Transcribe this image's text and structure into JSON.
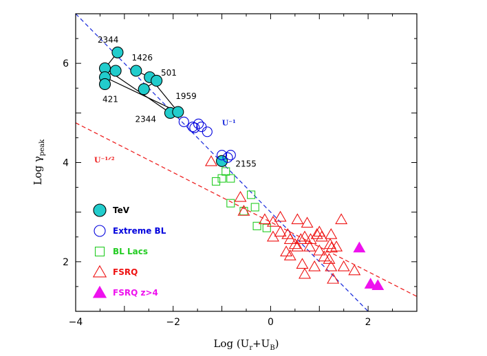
{
  "chart_data": {
    "type": "scatter",
    "title": "",
    "xlabel": "Log (U_r+U_B)",
    "ylabel": "Log γ_peak",
    "xlim": [
      -4,
      3
    ],
    "ylim": [
      1,
      7
    ],
    "xticks": [
      -4,
      -2,
      0,
      2
    ],
    "yticks": [
      2,
      4,
      6
    ],
    "grid": false,
    "legend_position": "lower-left",
    "series": [
      {
        "name": "TeV",
        "color": "#22cccc",
        "marker": "filled-circle",
        "points": [
          [
            -3.14,
            6.22
          ],
          [
            -3.4,
            5.9
          ],
          [
            -3.4,
            5.72
          ],
          [
            -3.4,
            5.58
          ],
          [
            -3.18,
            5.85
          ],
          [
            -2.76,
            5.85
          ],
          [
            -2.48,
            5.72
          ],
          [
            -2.34,
            5.65
          ],
          [
            -2.6,
            5.48
          ],
          [
            -2.06,
            5.0
          ],
          [
            -1.9,
            5.02
          ],
          [
            -1.0,
            4.03
          ]
        ]
      },
      {
        "name": "Extreme BL",
        "color": "#0000dd",
        "marker": "open-circle",
        "points": [
          [
            -1.78,
            4.82
          ],
          [
            -1.6,
            4.72
          ],
          [
            -1.56,
            4.7
          ],
          [
            -1.48,
            4.78
          ],
          [
            -1.42,
            4.72
          ],
          [
            -1.3,
            4.62
          ],
          [
            -1.0,
            4.15
          ],
          [
            -0.88,
            4.1
          ],
          [
            -0.82,
            4.15
          ]
        ]
      },
      {
        "name": "BL Lacs",
        "color": "#22cc22",
        "marker": "open-square",
        "points": [
          [
            -1.12,
            3.62
          ],
          [
            -1.0,
            3.68
          ],
          [
            -0.92,
            3.82
          ],
          [
            -0.82,
            3.68
          ],
          [
            -0.82,
            3.18
          ],
          [
            -0.55,
            3.02
          ],
          [
            -0.4,
            3.35
          ],
          [
            -0.32,
            3.1
          ],
          [
            -0.28,
            2.72
          ],
          [
            -0.08,
            2.68
          ]
        ]
      },
      {
        "name": "FSRQ",
        "color": "#ee1111",
        "marker": "open-triangle",
        "points": [
          [
            -1.22,
            4.02
          ],
          [
            -0.62,
            3.3
          ],
          [
            -0.55,
            3.02
          ],
          [
            -0.12,
            2.85
          ],
          [
            0.05,
            2.8
          ],
          [
            0.2,
            2.9
          ],
          [
            0.35,
            2.55
          ],
          [
            0.55,
            2.85
          ],
          [
            0.75,
            2.78
          ],
          [
            1.0,
            2.6
          ],
          [
            1.24,
            2.55
          ],
          [
            1.45,
            2.85
          ],
          [
            0.05,
            2.5
          ],
          [
            0.2,
            2.6
          ],
          [
            0.4,
            2.45
          ],
          [
            0.5,
            2.35
          ],
          [
            0.62,
            2.45
          ],
          [
            0.7,
            2.5
          ],
          [
            0.82,
            2.45
          ],
          [
            0.95,
            2.55
          ],
          [
            1.05,
            2.5
          ],
          [
            1.22,
            2.35
          ],
          [
            1.25,
            2.28
          ],
          [
            1.35,
            2.3
          ],
          [
            0.32,
            2.2
          ],
          [
            0.4,
            2.12
          ],
          [
            0.55,
            2.3
          ],
          [
            0.8,
            2.3
          ],
          [
            1.0,
            2.22
          ],
          [
            1.1,
            2.1
          ],
          [
            1.2,
            2.05
          ],
          [
            0.65,
            1.95
          ],
          [
            0.9,
            1.9
          ],
          [
            1.24,
            1.9
          ],
          [
            1.5,
            1.9
          ],
          [
            1.72,
            1.82
          ],
          [
            0.7,
            1.75
          ],
          [
            1.28,
            1.65
          ]
        ]
      },
      {
        "name": "FSRQ z>4",
        "color": "#ee11ee",
        "marker": "filled-triangle",
        "points": [
          [
            1.82,
            2.28
          ],
          [
            2.05,
            1.55
          ],
          [
            2.2,
            1.52
          ]
        ]
      }
    ],
    "lines": [
      {
        "name": "U⁻¹",
        "color": "#2233dd",
        "slope": -1.0,
        "intercept": 3.0
      },
      {
        "name": "U⁻¹ᐟ²",
        "color": "#ee2222",
        "slope": -0.5,
        "intercept": 2.8
      }
    ],
    "connectors": [
      [
        [
          -3.14,
          6.22
        ],
        [
          -3.4,
          5.9
        ],
        [
          -3.4,
          5.58
        ]
      ],
      [
        [
          -3.4,
          5.72
        ],
        [
          -3.18,
          5.85
        ]
      ],
      [
        [
          -3.4,
          5.9
        ],
        [
          -2.06,
          5.0
        ]
      ],
      [
        [
          -3.4,
          5.72
        ],
        [
          -1.9,
          5.02
        ]
      ],
      [
        [
          -2.76,
          5.85
        ],
        [
          -2.48,
          5.72
        ],
        [
          -1.9,
          5.02
        ]
      ],
      [
        [
          -2.6,
          5.48
        ],
        [
          -2.34,
          5.65
        ]
      ]
    ],
    "annotations": [
      {
        "text": "2344",
        "x": -3.55,
        "y": 6.42
      },
      {
        "text": "1426",
        "x": -2.85,
        "y": 6.06
      },
      {
        "text": "501",
        "x": -2.25,
        "y": 5.75
      },
      {
        "text": "421",
        "x": -3.45,
        "y": 5.22
      },
      {
        "text": "1959",
        "x": -1.95,
        "y": 5.28
      },
      {
        "text": "2344",
        "x": -2.78,
        "y": 4.82
      },
      {
        "text": "2155",
        "x": -0.72,
        "y": 3.92
      }
    ]
  }
}
